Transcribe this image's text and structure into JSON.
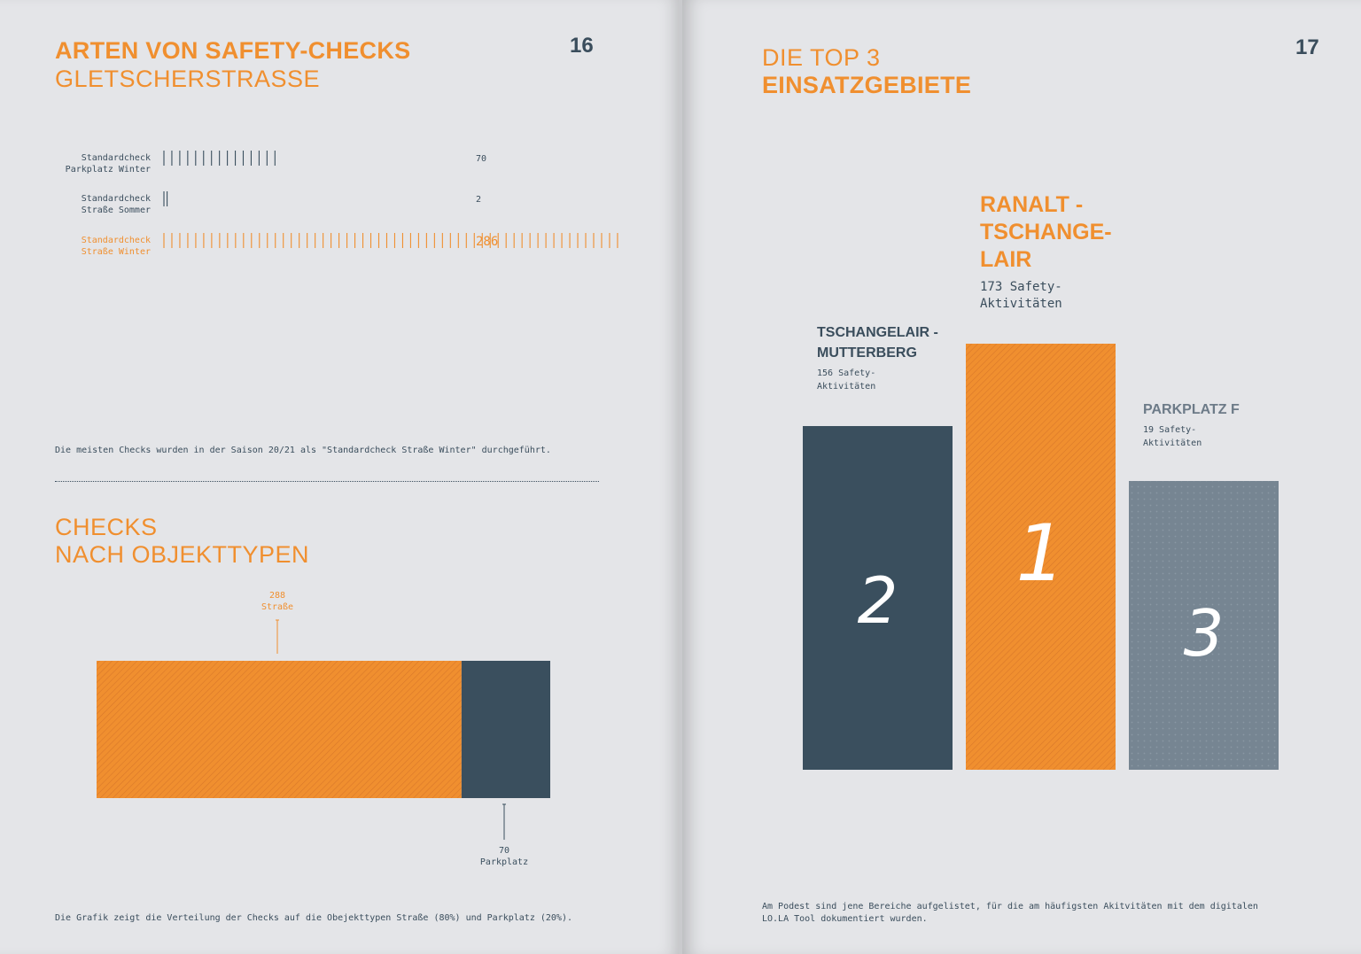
{
  "left_page": {
    "page_number": "16",
    "title_bold": "ARTEN VON SAFETY-CHECKS",
    "title_light": "GLETSCHERSTRASSE",
    "caption1": "Die meisten Checks wurden in der Saison 20/21 als \"Standardcheck Straße Winter\" durchgeführt.",
    "section2_title_line1": "CHECKS",
    "section2_title_line2": "NACH OBJEKTTYPEN",
    "caption2": "Die Grafik zeigt die Verteilung der Checks auf die Obejekttypen Straße (80%) und Parkplatz (20%)."
  },
  "right_page": {
    "page_number": "17",
    "title_light": "DIE TOP 3",
    "title_bold": "EINSATZGEBIETE",
    "caption_line1": "Am Podest sind jene Bereiche aufgelistet, für die am häufigsten Akitvitäten mit dem digitalen",
    "caption_line2": "LO.LA Tool dokumentiert wurden."
  },
  "colors": {
    "orange": "#f08f2f",
    "navy": "#3a4f5e",
    "slate": "#768592",
    "background": "#e4e5e8"
  },
  "chart_data": [
    {
      "type": "bar",
      "orientation": "horizontal",
      "categories": [
        {
          "line1": "Standardcheck",
          "line2": "Parkplatz Winter"
        },
        {
          "line1": "Standardcheck",
          "line2": "Straße Sommer"
        },
        {
          "line1": "Standardcheck",
          "line2": "Straße Winter"
        }
      ],
      "values": [
        70,
        2,
        286
      ],
      "value_labels": [
        "70",
        "2",
        "286"
      ],
      "highlight_index": 2
    },
    {
      "type": "bar",
      "orientation": "stacked-horizontal",
      "segments": [
        {
          "value": 288,
          "value_label": "288",
          "name": "Straße",
          "color": "#f08f2f"
        },
        {
          "value": 70,
          "value_label": "70",
          "name": "Parkplatz",
          "color": "#3a4f5e"
        }
      ]
    },
    {
      "type": "bar",
      "subtype": "podium",
      "bars": [
        {
          "rank": "2",
          "name_line1": "TSCHANGELAIR -",
          "name_line2": "MUTTERBERG",
          "name_line3": "",
          "value": 156,
          "value_line1": "156 Safety-",
          "value_line2": "Aktivitäten",
          "color": "#3a4f5e",
          "pattern": "solid"
        },
        {
          "rank": "1",
          "name_line1": "RANALT -",
          "name_line2": "TSCHANGE-",
          "name_line3": "LAIR",
          "value": 173,
          "value_line1": "173 Safety-",
          "value_line2": "Aktivitäten",
          "color": "#f08f2f",
          "pattern": "hatch"
        },
        {
          "rank": "3",
          "name_line1": "PARKPLATZ F",
          "name_line2": "",
          "name_line3": "",
          "value": 19,
          "value_line1": "19 Safety-",
          "value_line2": "Aktivitäten",
          "color": "#768592",
          "pattern": "dots"
        }
      ]
    }
  ]
}
